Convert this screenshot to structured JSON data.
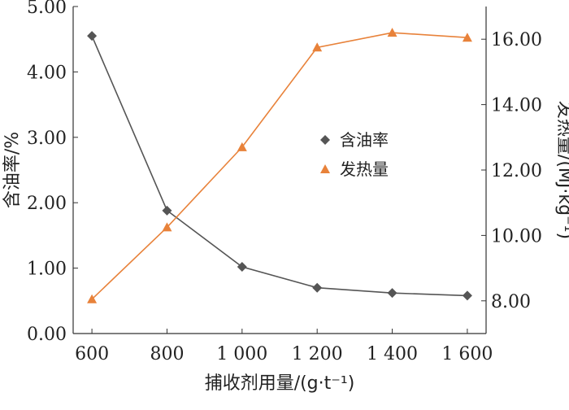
{
  "chart_data": {
    "type": "line",
    "categories": [
      "600",
      "800",
      "1 000",
      "1 200",
      "1 400",
      "1 600"
    ],
    "x": [
      600,
      800,
      1000,
      1200,
      1400,
      1600
    ],
    "xlabel": "捕收剂用量/(g·t⁻¹)",
    "ylabel": "含油率/%",
    "y2label": "发热量/(MJ·kg⁻¹)",
    "ylim": [
      0,
      5
    ],
    "y2lim": [
      7,
      17
    ],
    "y_ticks": [
      "0.00",
      "1.00",
      "2.00",
      "3.00",
      "4.00",
      "5.00"
    ],
    "y_tick_values": [
      0,
      1,
      2,
      3,
      4,
      5
    ],
    "y2_ticks": [
      "8.00",
      "10.00",
      "12.00",
      "14.00",
      "16.00"
    ],
    "y2_tick_values": [
      8,
      10,
      12,
      14,
      16
    ],
    "series": [
      {
        "name": "含油率",
        "axis": "left",
        "marker": "diamond",
        "color": "#555555",
        "values": [
          4.55,
          1.88,
          1.02,
          0.7,
          0.62,
          0.58
        ]
      },
      {
        "name": "发热量",
        "axis": "right",
        "marker": "triangle",
        "color": "#E8823A",
        "values": [
          8.05,
          10.25,
          12.7,
          15.75,
          16.2,
          16.05
        ]
      }
    ],
    "legend_position": "center-right",
    "grid": false
  }
}
